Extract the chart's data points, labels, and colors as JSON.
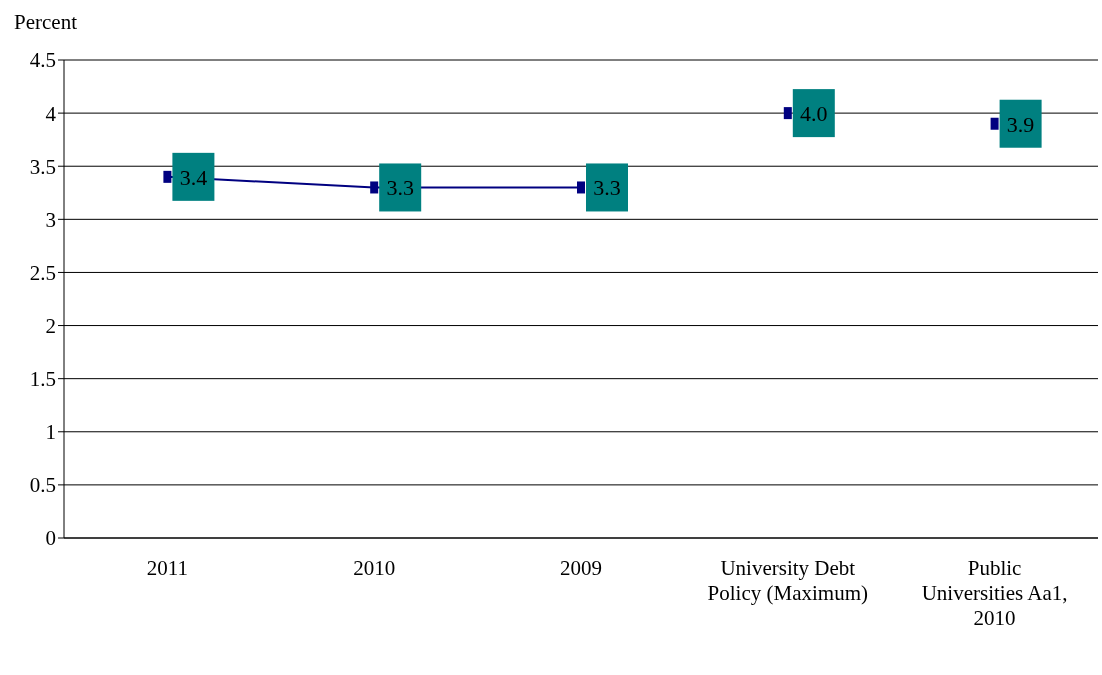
{
  "chart_data": {
    "type": "line",
    "ylabel": "Percent",
    "categories": [
      "2011",
      "2010",
      "2009",
      "University Debt Policy (Maximum)",
      "Public Universities Aa1, 2010"
    ],
    "series": [
      {
        "type": "line",
        "color": "#000080",
        "values": [
          3.4,
          3.3,
          3.3,
          null,
          null
        ],
        "value_labels": [
          "3.4",
          "3.3",
          "3.3",
          null,
          null
        ]
      },
      {
        "type": "scatter",
        "color": "#000080",
        "values": [
          null,
          null,
          null,
          4.0,
          3.9
        ],
        "value_labels": [
          null,
          null,
          null,
          "4.0",
          "3.9"
        ]
      }
    ],
    "ylim": [
      0,
      4.5
    ],
    "yticks": [
      0,
      0.5,
      1,
      1.5,
      2,
      2.5,
      3,
      3.5,
      4,
      4.5
    ],
    "grid": "y",
    "marker": "square"
  }
}
